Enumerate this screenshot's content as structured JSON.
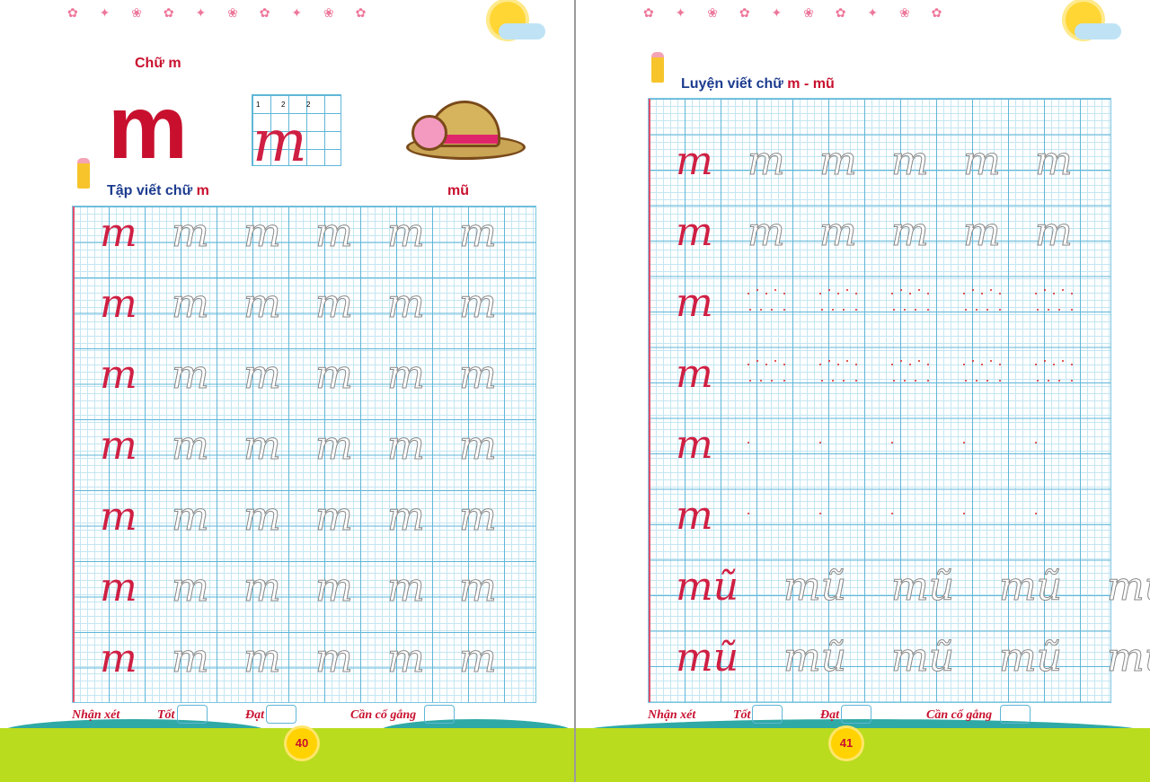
{
  "left_page": {
    "letter_heading": "Chữ m",
    "big_letter": "m",
    "stroke_guide": {
      "letter": "m",
      "steps": [
        "1",
        "2",
        "2"
      ]
    },
    "picture": "hat",
    "picture_word": "mũ",
    "section_title_prefix": "Tập viết chữ ",
    "section_title_letter": "m",
    "practice_rows": [
      {
        "sample": "m",
        "traced": [
          "m",
          "m",
          "m",
          "m",
          "m"
        ]
      },
      {
        "sample": "m",
        "traced": [
          "m",
          "m",
          "m",
          "m",
          "m"
        ]
      },
      {
        "sample": "m",
        "traced": [
          "m",
          "m",
          "m",
          "m",
          "m"
        ]
      },
      {
        "sample": "m",
        "traced": [
          "m",
          "m",
          "m",
          "m",
          "m"
        ]
      },
      {
        "sample": "m",
        "traced": [
          "m",
          "m",
          "m",
          "m",
          "m"
        ]
      },
      {
        "sample": "m",
        "traced": [
          "m",
          "m",
          "m",
          "m",
          "m"
        ]
      },
      {
        "sample": "m",
        "traced": [
          "m",
          "m",
          "m",
          "m",
          "m"
        ]
      }
    ],
    "page_number": "40"
  },
  "right_page": {
    "section_title_prefix": "Luyện viết chữ ",
    "section_title_letter": "m - mũ",
    "practice_rows": [
      {
        "sample": "m",
        "mode": "traced",
        "traced": [
          "m",
          "m",
          "m",
          "m",
          "m"
        ]
      },
      {
        "sample": "m",
        "mode": "traced",
        "traced": [
          "m",
          "m",
          "m",
          "m",
          "m"
        ]
      },
      {
        "sample": "m",
        "mode": "dotted",
        "count": 5
      },
      {
        "sample": "m",
        "mode": "dotted",
        "count": 5
      },
      {
        "sample": "m",
        "mode": "start-dot",
        "count": 5
      },
      {
        "sample": "m",
        "mode": "start-dot",
        "count": 5
      },
      {
        "sample": "mũ",
        "mode": "traced",
        "traced": [
          "mũ",
          "mũ",
          "mũ",
          "mũ"
        ]
      },
      {
        "sample": "mũ",
        "mode": "traced",
        "traced": [
          "mũ",
          "mũ",
          "mũ",
          "mũ"
        ]
      }
    ],
    "page_number": "41"
  },
  "footer": {
    "comment": "Nhận xét",
    "good": "Tốt",
    "pass": "Đạt",
    "try_harder": "Cần cố gắng"
  },
  "colors": {
    "accent_red": "#c8102e",
    "title_blue": "#1d3c8f",
    "grid_blue": "#5fb6d8"
  }
}
